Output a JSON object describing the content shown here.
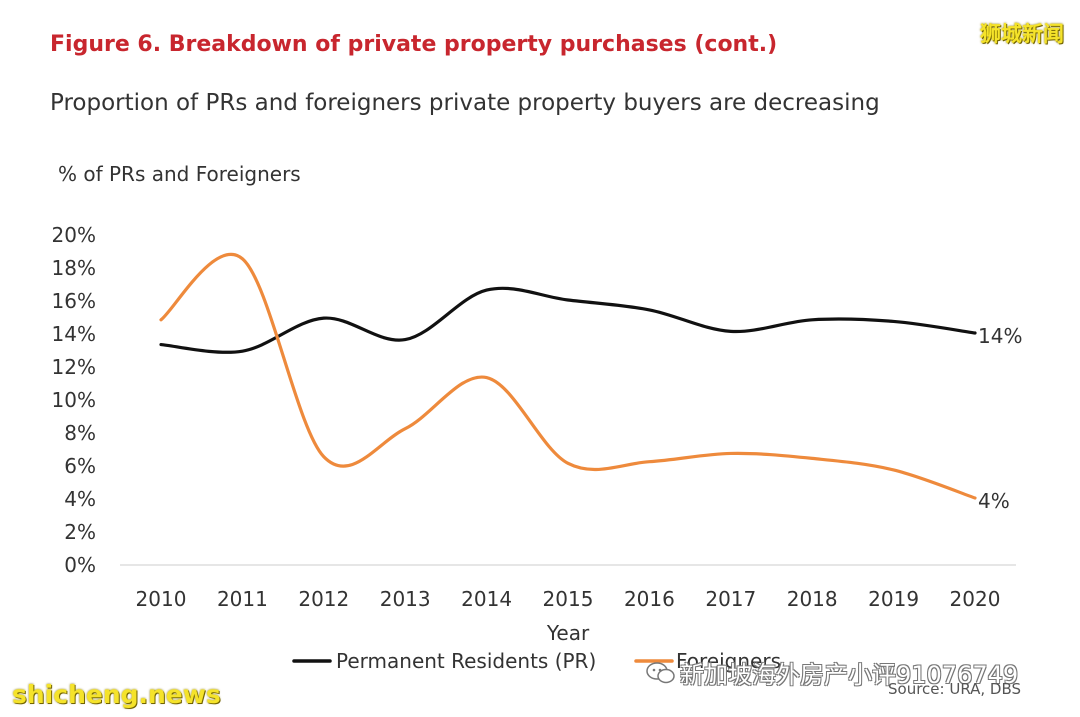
{
  "header": {
    "figure_title": "Figure 6. Breakdown of private property purchases (cont.)",
    "subtitle": "Proportion of PRs and foreigners private property buyers are decreasing"
  },
  "watermarks": {
    "top_right": "狮城新闻",
    "bottom_left": "shicheng.news",
    "overlay": "新加坡海外房产小评91076749"
  },
  "source": "Source: URA, DBS",
  "colors": {
    "pr": "#111111",
    "foreigners": "#ee8a3c",
    "title": "#c8262e"
  },
  "chart_data": {
    "type": "line",
    "title": "Proportion of PRs and foreigners private property buyers are decreasing",
    "ylabel": "% of PRs and Foreigners",
    "xlabel": "Year",
    "categories": [
      "2010",
      "2011",
      "2012",
      "2013",
      "2014",
      "2015",
      "2016",
      "2017",
      "2018",
      "2019",
      "2020"
    ],
    "ylim": [
      0,
      20
    ],
    "yticks": [
      0,
      2,
      4,
      6,
      8,
      10,
      12,
      14,
      16,
      18,
      20
    ],
    "ytick_labels": [
      "0%",
      "2%",
      "4%",
      "6%",
      "8%",
      "10%",
      "12%",
      "14%",
      "16%",
      "18%",
      "20%"
    ],
    "series": [
      {
        "name": "Permanent Residents (PR)",
        "color": "#111111",
        "values": [
          13.3,
          12.9,
          14.9,
          13.6,
          16.6,
          16.0,
          15.4,
          14.1,
          14.8,
          14.7,
          14.0
        ],
        "end_label": "14%"
      },
      {
        "name": "Foreigners",
        "color": "#ee8a3c",
        "values": [
          14.8,
          18.5,
          6.5,
          8.2,
          11.3,
          6.1,
          6.2,
          6.7,
          6.4,
          5.7,
          4.0
        ],
        "end_label": "4%"
      }
    ],
    "legend": "bottom-center",
    "grid": false
  }
}
